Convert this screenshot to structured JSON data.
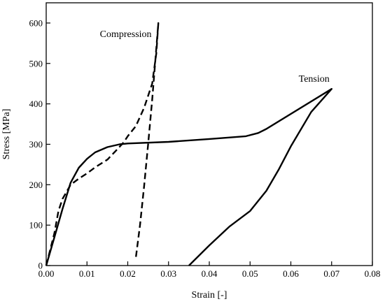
{
  "chart_data": {
    "type": "line",
    "xlabel": "Strain [-]",
    "ylabel": "Stress [MPa]",
    "xlim": [
      0,
      0.08
    ],
    "ylim": [
      0,
      650
    ],
    "x_ticks": [
      "0.00",
      "0.01",
      "0.02",
      "0.03",
      "0.04",
      "0.05",
      "0.06",
      "0.07",
      "0.08"
    ],
    "y_ticks": [
      "0",
      "100",
      "200",
      "300",
      "400",
      "500",
      "600"
    ],
    "grid": false,
    "legend": "none",
    "annotations": [
      "Compression",
      "Tension"
    ],
    "series": [
      {
        "name": "Tension",
        "line_style": "solid",
        "color": "#000000",
        "x": [
          0.0,
          0.002,
          0.004,
          0.006,
          0.008,
          0.01,
          0.012,
          0.015,
          0.018,
          0.02,
          0.03,
          0.04,
          0.049,
          0.052,
          0.054,
          0.07,
          0.065,
          0.06,
          0.057,
          0.054,
          0.05,
          0.045,
          0.04,
          0.035
        ],
        "y": [
          0,
          70,
          140,
          205,
          242,
          264,
          280,
          293,
          300,
          302,
          306,
          313,
          320,
          328,
          338,
          437,
          380,
          295,
          237,
          185,
          135,
          97,
          50,
          0
        ]
      },
      {
        "name": "Compression",
        "line_style": "dashed",
        "color": "#000000",
        "x": [
          0.0,
          0.002,
          0.003,
          0.004,
          0.006,
          0.008,
          0.01,
          0.012,
          0.015,
          0.017,
          0.019,
          0.02,
          0.022,
          0.024,
          0.026,
          0.027,
          0.0275,
          0.026,
          0.025,
          0.024,
          0.023,
          0.022
        ],
        "y": [
          0,
          80,
          135,
          165,
          200,
          215,
          228,
          243,
          262,
          283,
          305,
          320,
          345,
          390,
          450,
          525,
          600,
          410,
          300,
          195,
          100,
          20
        ]
      }
    ]
  }
}
